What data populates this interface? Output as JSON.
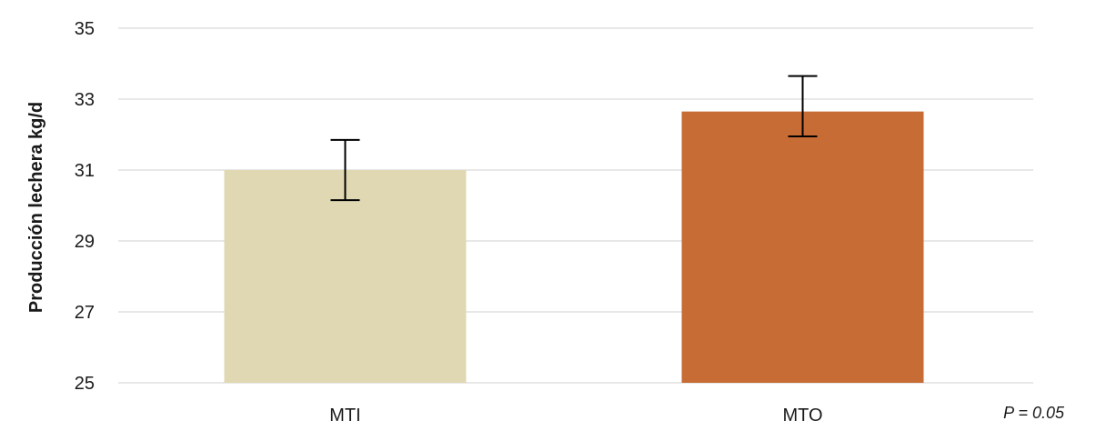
{
  "chart_data": {
    "type": "bar",
    "categories": [
      "MTI",
      "MTO"
    ],
    "values": [
      31.0,
      32.65
    ],
    "error_high": [
      31.85,
      33.65
    ],
    "error_low": [
      30.15,
      31.95
    ],
    "colors": [
      "#e0d8b3",
      "#c76c35"
    ],
    "error_bar_color": "#000000",
    "gridline_color": "#d0d0d0",
    "title": "",
    "xlabel": "",
    "ylabel": "Producción lechera  kg/d",
    "ylim": [
      25,
      35
    ],
    "yticks": [
      25,
      27,
      29,
      31,
      33,
      35
    ],
    "grid": true,
    "legend": "none",
    "annotation": "P = 0.05"
  }
}
